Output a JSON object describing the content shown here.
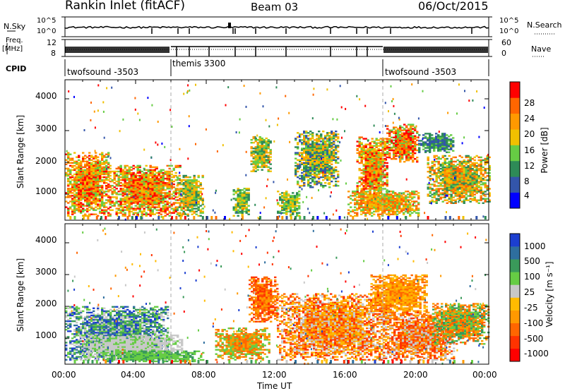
{
  "header": {
    "station": "Rankin Inlet (fitACF)",
    "beam": "Beam 03",
    "date": "06/Oct/2015"
  },
  "strip_labels": {
    "nsky": "N.Sky",
    "nsky_tick_top": "10^5",
    "nsky_tick_bottom": "10^0",
    "nsearch": "N.Search",
    "nsearch_tick_top": "10^5",
    "nsearch_tick_bottom": "10^0",
    "freq_line1": "Freq.",
    "freq_line2": "[MHz]",
    "freq_tick_top": "12",
    "freq_tick_bottom": "8",
    "nave": "Nave",
    "nave_tick_top": "60",
    "nave_tick_bottom": "0",
    "cpid": "CPID"
  },
  "cpid_segments": [
    {
      "label": "twofsound -3503",
      "start_hour": 0,
      "end_hour": 6
    },
    {
      "label": "themis 3300",
      "start_hour": 6,
      "end_hour": 18
    },
    {
      "label": "twofsound -3503",
      "start_hour": 18,
      "end_hour": 24
    }
  ],
  "colors": {
    "power": [
      "#0000ff",
      "#3355aa",
      "#2e8b57",
      "#66cc44",
      "#f0c000",
      "#ff9900",
      "#ff6600",
      "#ff0000"
    ],
    "velocity": [
      "#ff0000",
      "#ff3300",
      "#ff6600",
      "#ff9900",
      "#ffbb00",
      "#c8c8c8",
      "#66cc44",
      "#3a9a5a",
      "#2e6e9e",
      "#1c3fd0"
    ]
  },
  "chart_data": [
    {
      "type": "heatmap",
      "name": "power",
      "ylabel": "Slant Range [km]",
      "xlabel": "",
      "xticks": [],
      "xlim_hours": [
        0,
        24
      ],
      "ylim_km": [
        180,
        4600
      ],
      "yticks": [
        "1000",
        "2000",
        "3000",
        "4000"
      ],
      "yticks_values": [
        1000,
        2000,
        3000,
        4000
      ],
      "colorbar_label": "Power [dB]",
      "colorbar_ticks": [
        "28",
        "24",
        "20",
        "16",
        "12",
        "8",
        "4"
      ],
      "colorbar_ticks_values": [
        28,
        24,
        20,
        16,
        12,
        8,
        4
      ]
    },
    {
      "type": "heatmap",
      "name": "velocity",
      "ylabel": "Slant Range [km]",
      "xlabel": "Time UT",
      "xticks": [
        "00:00",
        "04:00",
        "08:00",
        "12:00",
        "16:00",
        "20:00",
        "00:00"
      ],
      "xticks_hours": [
        0,
        4,
        8,
        12,
        16,
        20,
        24
      ],
      "xlim_hours": [
        0,
        24
      ],
      "ylim_km": [
        180,
        4600
      ],
      "yticks": [
        "1000",
        "2000",
        "3000",
        "4000"
      ],
      "yticks_values": [
        1000,
        2000,
        3000,
        4000
      ],
      "colorbar_label": "Velocity [m s⁻¹]",
      "colorbar_ticks": [
        "1000",
        "500",
        "100",
        "25",
        "-25",
        "-100",
        "-500",
        "-1000"
      ],
      "colorbar_ticks_values": [
        1000,
        500,
        100,
        25,
        -25,
        -100,
        -500,
        -1000
      ]
    }
  ]
}
